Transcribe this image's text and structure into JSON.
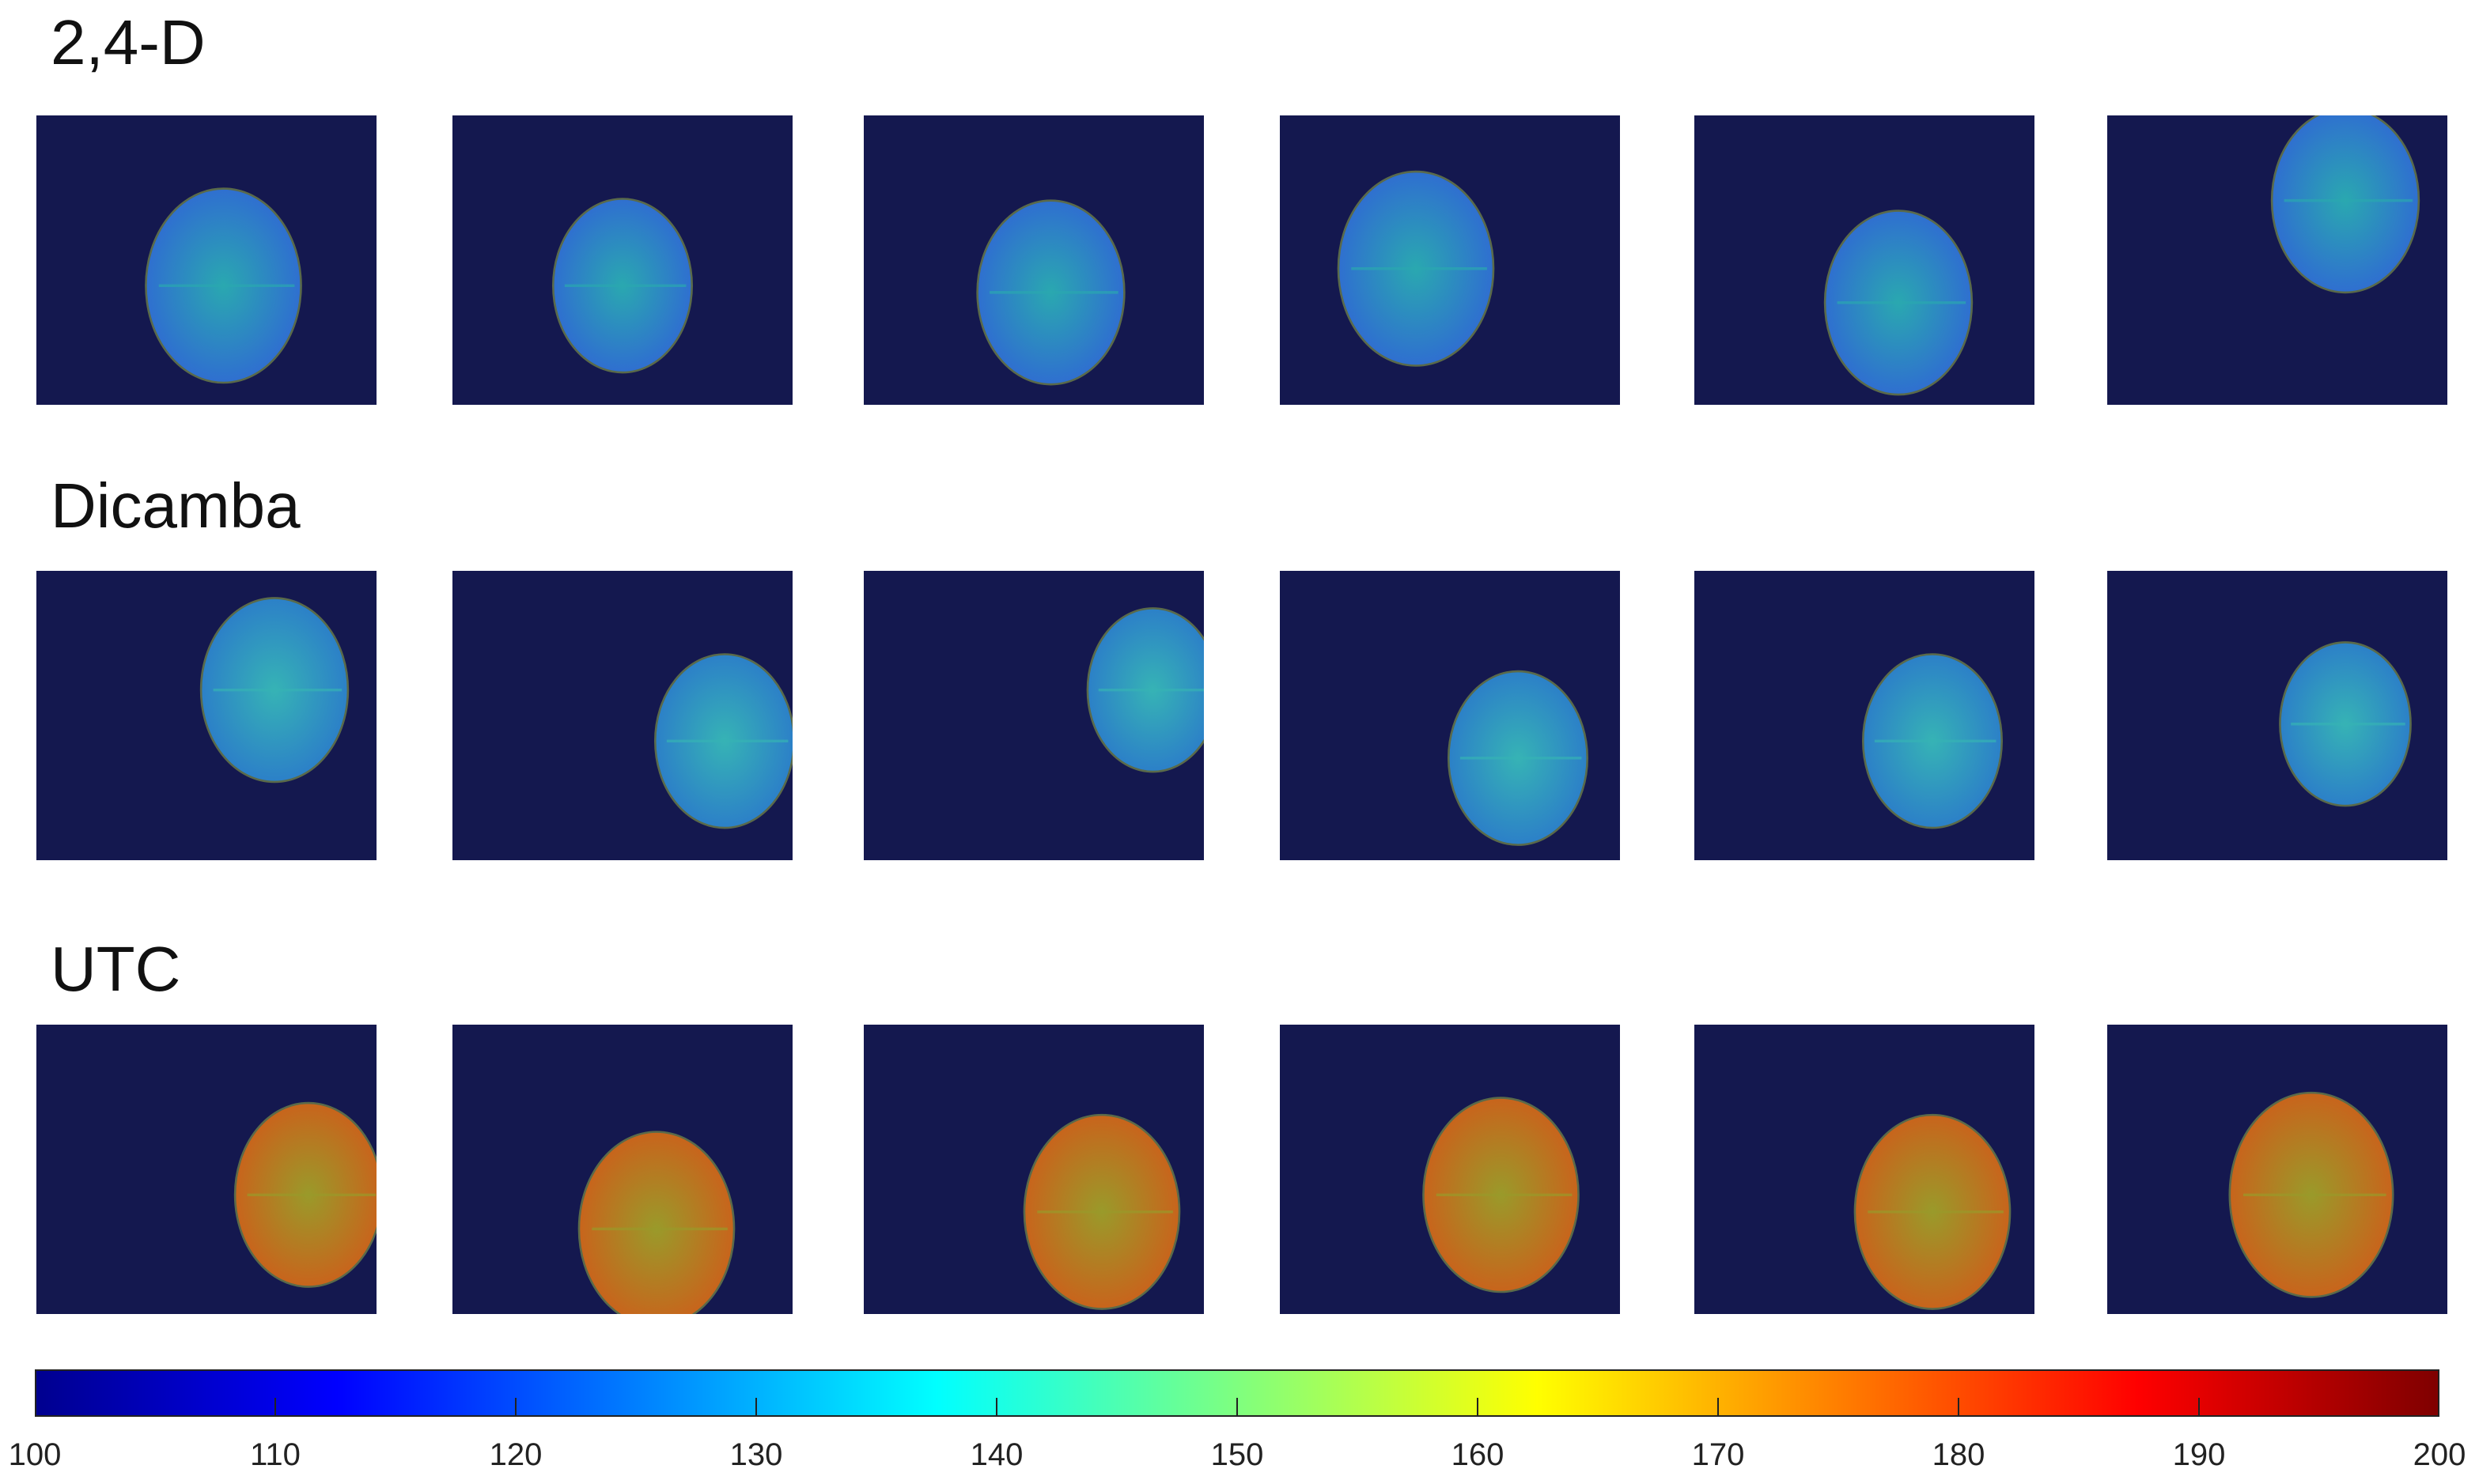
{
  "rows": [
    {
      "title": "2,4-D",
      "tint": "#2f6fd0",
      "tint2": "#2aa8b0"
    },
    {
      "title": "Dicamba",
      "tint": "#2c80c8",
      "tint2": "#36b3b5"
    },
    {
      "title": "UTC",
      "tint": "#c8641c",
      "tint2": "#9a9a2a"
    }
  ],
  "colorbar": {
    "ticks": [
      "100",
      "110",
      "120",
      "130",
      "140",
      "150",
      "160",
      "170",
      "180",
      "190",
      "200"
    ],
    "min": 100,
    "max": 200,
    "colormap": "jet"
  }
}
